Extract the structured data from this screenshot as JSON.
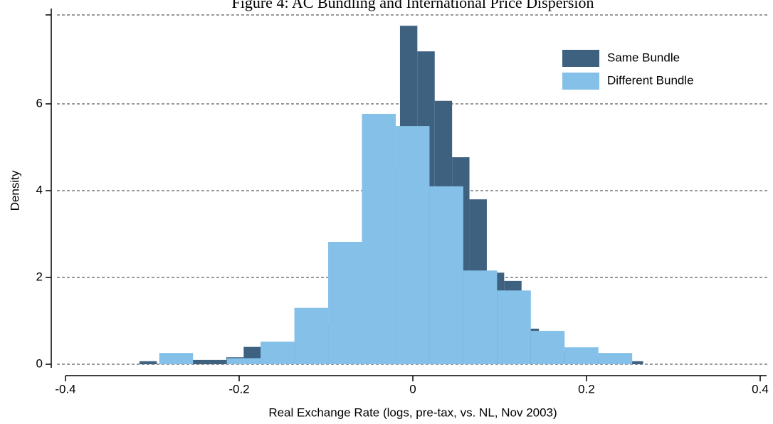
{
  "chart_data": {
    "type": "histogram",
    "title": "Figure 4: AC Bundling and International Price Dispersion",
    "x_label": "Real Exchange Rate (logs, pre-tax, vs. NL, Nov 2003)",
    "y_label": "Density",
    "xlim": [
      -0.4,
      0.41
    ],
    "ylim": [
      0,
      8.05
    ],
    "xticks": [
      -0.4,
      -0.2,
      0.0,
      0.2,
      0.4
    ],
    "yticks": [
      0,
      2,
      4,
      6
    ],
    "grid": true,
    "legend": "upper right",
    "series": [
      {
        "name": "Same Bundle",
        "color": "#3f6180",
        "bins": [
          -0.3148,
          -0.2948,
          -0.2748,
          -0.2548,
          -0.2348,
          -0.2148,
          -0.1948,
          -0.1748,
          -0.1548,
          -0.1348,
          -0.1148,
          -0.0948,
          -0.0748,
          -0.0548,
          -0.0348,
          -0.0148,
          0.0052,
          0.0252,
          0.0452,
          0.0652,
          0.0852,
          0.1052,
          0.1252,
          0.1452,
          0.1652,
          0.1852,
          0.2052,
          0.2252,
          0.2452,
          0.2652
        ],
        "values": [
          0.07,
          0,
          0,
          0.1,
          0.1,
          0.16,
          0.4,
          0.3,
          0.5,
          0.8,
          0.9,
          1.5,
          2.0,
          3.0,
          4.5,
          7.8,
          7.21,
          6.07,
          4.77,
          3.8,
          2.11,
          1.92,
          0.82,
          0.5,
          0.3,
          0.2,
          0.15,
          0.1,
          0.07
        ]
      },
      {
        "name": "Different Bundle",
        "color": "#84c0e8",
        "bins": [
          -0.292,
          -0.2531,
          -0.2142,
          -0.1753,
          -0.1364,
          -0.0975,
          -0.0586,
          -0.0197,
          0.0192,
          0.0581,
          0.097,
          0.1359,
          0.1748,
          0.2137,
          0.2526
        ],
        "values": [
          0.26,
          0,
          0.14,
          0.52,
          1.3,
          2.82,
          5.77,
          5.49,
          4.1,
          2.16,
          1.7,
          0.77,
          0.39,
          0.26
        ]
      }
    ]
  }
}
